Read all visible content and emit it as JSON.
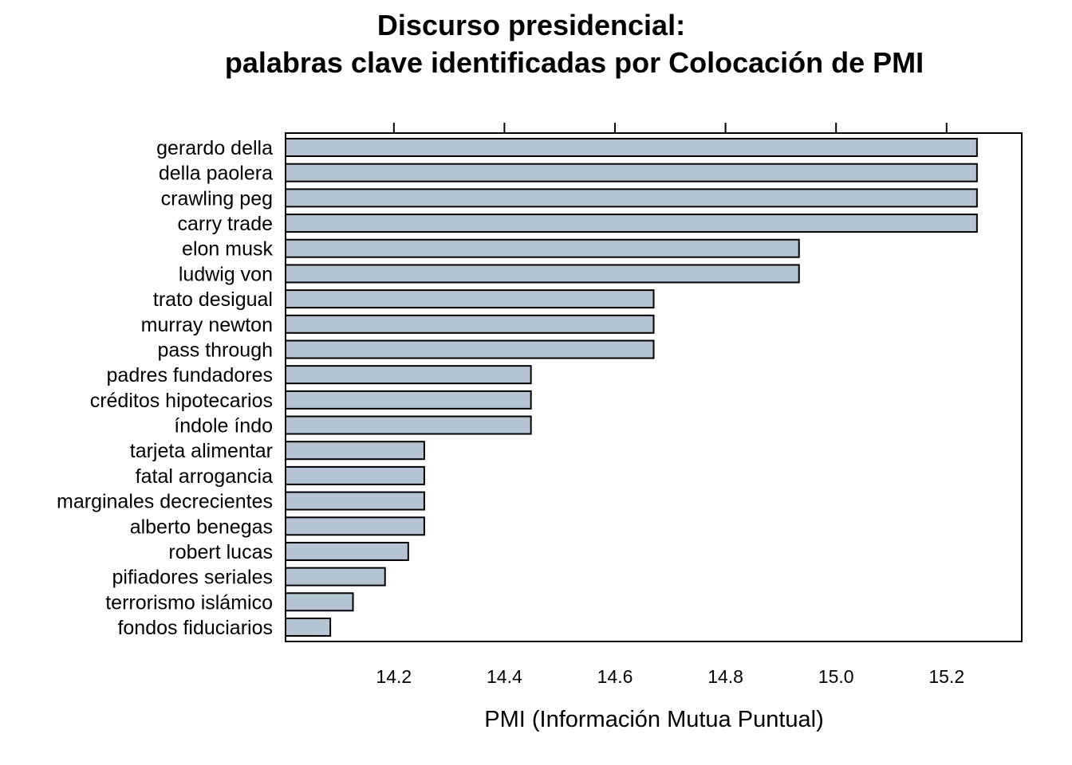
{
  "chart_data": {
    "type": "bar",
    "orientation": "horizontal",
    "title": [
      "Discurso presidencial:",
      "palabras clave identificadas por Colocación de PMI"
    ],
    "xlabel": "PMI (Información Mutua Puntual)",
    "ylabel": "",
    "xlim": [
      14.004,
      15.336
    ],
    "xticks": [
      14.2,
      14.4,
      14.6,
      14.8,
      15.0,
      15.2
    ],
    "xtick_labels": [
      "14.2",
      "14.4",
      "14.6",
      "14.8",
      "15.0",
      "15.2"
    ],
    "grid": false,
    "bar_color": "#b5c4d3",
    "categories": [
      "gerardo della",
      "della paolera",
      "crawling peg",
      "carry trade",
      "elon musk",
      "ludwig von",
      "trato desigual",
      "murray newton",
      "pass through",
      "padres fundadores",
      "créditos hipotecarios",
      "índole índo",
      "tarjeta alimentar",
      "fatal arrogancia",
      "marginales decrecientes",
      "alberto benegas",
      "robert lucas",
      "pifiadores seriales",
      "terrorismo islámico",
      "fondos fiduciarios"
    ],
    "values": [
      15.255,
      15.255,
      15.255,
      15.255,
      14.933,
      14.933,
      14.67,
      14.67,
      14.67,
      14.448,
      14.448,
      14.448,
      14.255,
      14.255,
      14.255,
      14.255,
      14.226,
      14.184,
      14.126,
      14.085
    ]
  }
}
